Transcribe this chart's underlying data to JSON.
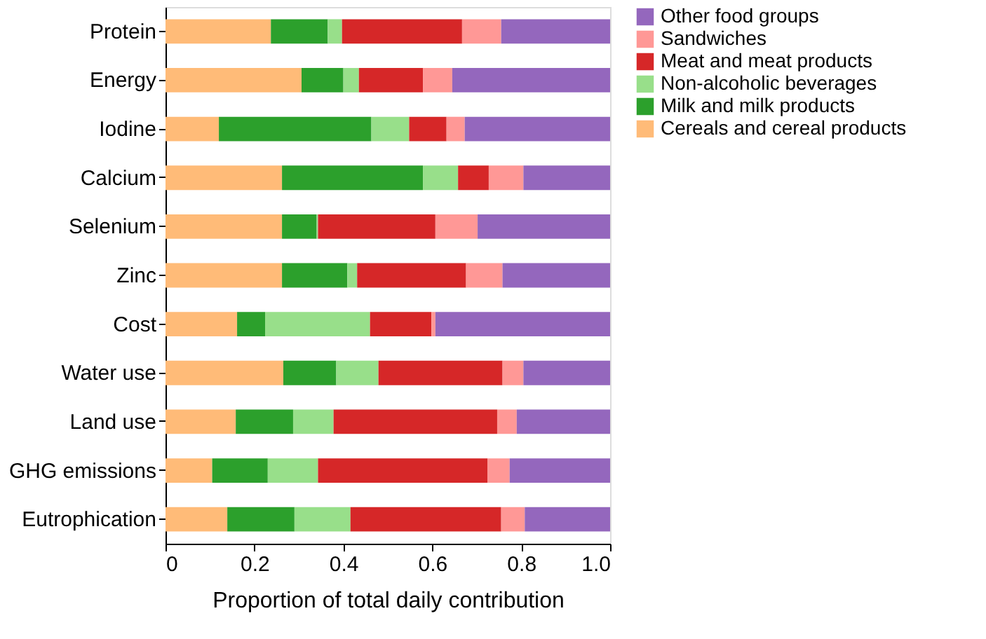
{
  "chart_data": {
    "type": "bar",
    "orientation": "horizontal",
    "stacked": true,
    "xlabel": "Proportion of total daily contribution",
    "categories": [
      "Protein",
      "Energy",
      "Iodine",
      "Calcium",
      "Selenium",
      "Zinc",
      "Cost",
      "Water use",
      "Land use",
      "GHG emissions",
      "Eutrophication"
    ],
    "xlim": [
      0,
      1
    ],
    "xticks": [
      0,
      0.2,
      0.4,
      0.6,
      0.8,
      {
        "value": 1,
        "label": "1.0"
      }
    ],
    "grid": false,
    "legend": "top right",
    "series": [
      {
        "name": "Cereals and cereal products",
        "color": "#ffbb78",
        "values": [
          0.237,
          0.306,
          0.12,
          0.262,
          0.262,
          0.262,
          0.161,
          0.265,
          0.158,
          0.105,
          0.139
        ]
      },
      {
        "name": "Milk and milk products",
        "color": "#2ca02c",
        "values": [
          0.128,
          0.094,
          0.343,
          0.317,
          0.078,
          0.147,
          0.063,
          0.119,
          0.129,
          0.125,
          0.151
        ]
      },
      {
        "name": "Non-alcoholic beverages",
        "color": "#98df8a",
        "values": [
          0.032,
          0.035,
          0.085,
          0.079,
          0.003,
          0.022,
          0.236,
          0.095,
          0.091,
          0.113,
          0.126
        ]
      },
      {
        "name": "Meat and meat products",
        "color": "#d62728",
        "values": [
          0.27,
          0.144,
          0.084,
          0.069,
          0.264,
          0.245,
          0.138,
          0.279,
          0.368,
          0.381,
          0.339
        ]
      },
      {
        "name": "Sandwiches",
        "color": "#ff9896",
        "values": [
          0.088,
          0.066,
          0.041,
          0.078,
          0.095,
          0.082,
          0.009,
          0.047,
          0.044,
          0.05,
          0.053
        ]
      },
      {
        "name": "Other food groups",
        "color": "#9467bd",
        "values": [
          0.245,
          0.355,
          0.327,
          0.195,
          0.298,
          0.242,
          0.393,
          0.195,
          0.21,
          0.226,
          0.192
        ]
      }
    ]
  }
}
